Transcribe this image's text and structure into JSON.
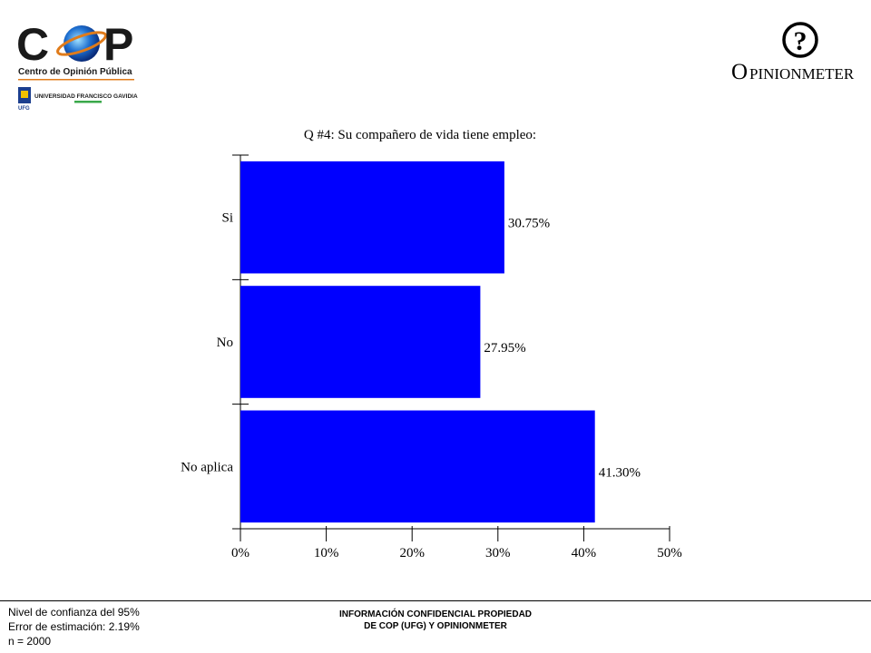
{
  "header": {
    "cop_logo_text": "COP",
    "cop_subtitle": "Centro de Opinión Pública",
    "university": "UNIVERSIDAD FRANCISCO GAVIDIA",
    "ufg_badge": "UFG",
    "opinionmeter_mark": "?",
    "opinionmeter_first": "O",
    "opinionmeter_rest": "PINIONMETER"
  },
  "chart_data": {
    "type": "bar",
    "orientation": "horizontal",
    "title": "Q #4: Su compañero de vida tiene empleo:",
    "categories": [
      "Si",
      "No",
      "No aplica"
    ],
    "values": [
      30.75,
      27.95,
      41.3
    ],
    "value_labels": [
      "30.75%",
      "27.95%",
      "41.30%"
    ],
    "xlim": [
      0,
      50
    ],
    "ticks": [
      0,
      10,
      20,
      30,
      40,
      50
    ],
    "tick_labels": [
      "0%",
      "10%",
      "20%",
      "30%",
      "40%",
      "50%"
    ],
    "bar_color": "#0000ff",
    "grid": false,
    "legend": "none"
  },
  "footer": {
    "left_lines": [
      "Nivel de confianza del 95%",
      "Error de estimación: 2.19%",
      "n = 2000"
    ],
    "center_lines": [
      "INFORMACIÓN CONFIDENCIAL PROPIEDAD",
      "DE COP (UFG) Y OPINIONMETER"
    ]
  }
}
